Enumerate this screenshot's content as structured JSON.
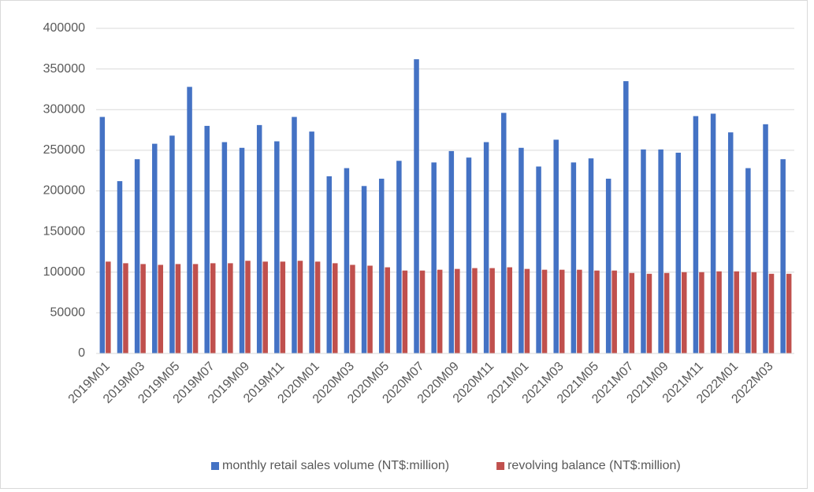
{
  "chart_data": {
    "type": "bar",
    "categories": [
      "2019M01",
      null,
      "2019M03",
      null,
      "2019M05",
      null,
      "2019M07",
      null,
      "2019M09",
      null,
      "2019M11",
      null,
      "2020M01",
      null,
      "2020M03",
      null,
      "2020M05",
      null,
      "2020M07",
      null,
      "2020M09",
      null,
      "2020M11",
      null,
      "2021M01",
      null,
      "2021M03",
      null,
      "2021M05",
      null,
      "2021M07",
      null,
      "2021M09",
      null,
      "2021M11",
      null,
      "2022M01",
      null,
      "2022M03",
      null
    ],
    "series": [
      {
        "name": "monthly retail sales volume (NT$:million)",
        "color": "#4472c4",
        "values": [
          291000,
          212000,
          239000,
          258000,
          268000,
          328000,
          280000,
          260000,
          253000,
          281000,
          261000,
          291000,
          273000,
          218000,
          228000,
          206000,
          215000,
          237000,
          362000,
          235000,
          249000,
          241000,
          260000,
          296000,
          253000,
          230000,
          263000,
          235000,
          240000,
          215000,
          335000,
          251000,
          251000,
          247000,
          292000,
          295000,
          272000,
          228000,
          282000,
          239000
        ]
      },
      {
        "name": "revolving balance (NT$:million)",
        "color": "#c0504d",
        "values": [
          113000,
          111000,
          110000,
          109000,
          110000,
          110000,
          111000,
          111000,
          114000,
          113000,
          113000,
          114000,
          113000,
          111000,
          109000,
          108000,
          106000,
          102000,
          102000,
          103000,
          104000,
          105000,
          105000,
          106000,
          104000,
          103000,
          103000,
          103000,
          102000,
          102000,
          99000,
          98000,
          99000,
          100000,
          100000,
          101000,
          101000,
          100000,
          98000,
          98000
        ]
      }
    ],
    "ylim": [
      0,
      400000
    ],
    "yticks": [
      0,
      50000,
      100000,
      150000,
      200000,
      250000,
      300000,
      350000,
      400000
    ],
    "grid": true,
    "legend": "bottom"
  }
}
